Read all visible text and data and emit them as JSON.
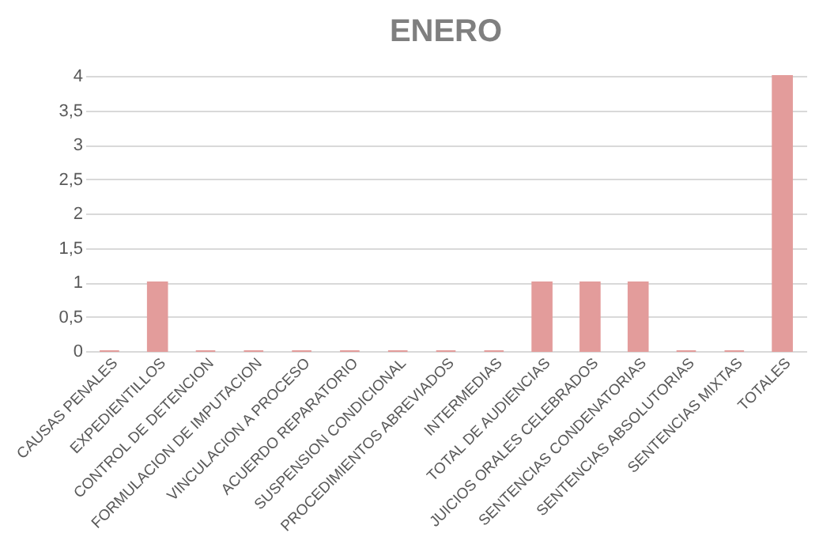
{
  "chart_data": {
    "type": "bar",
    "title": "ENERO",
    "categories": [
      "CAUSAS PENALES",
      "EXPEDIENTILLOS",
      "CONTROL DE DETENCION",
      "FORMULACION DE IMPUTACION",
      "VINCULACION A PROCESO",
      "ACUERDO REPARATORIO",
      "SUSPENSION CONDICIONAL",
      "PROCEDIMIENTOS ABREVIADOS",
      "INTERMEDIAS",
      "TOTAL DE AUDIENCIAS",
      "JUICIOS ORALES CELEBRADOS",
      "SENTENCIAS CONDENATORIAS",
      "SENTENCIAS ABSOLUTORIAS",
      "SENTENCIAS MIXTAS",
      "TOTALES"
    ],
    "values": [
      0,
      1,
      0,
      0,
      0,
      0,
      0,
      0,
      0,
      1,
      1,
      1,
      0,
      0,
      4
    ],
    "color": "#e39c9b",
    "ylim": [
      0,
      4
    ],
    "yticks": [
      0,
      {
        "value": 0.5,
        "label": "0,5"
      },
      1,
      {
        "value": 1.5,
        "label": "1,5"
      },
      2,
      {
        "value": 2.5,
        "label": "2,5"
      },
      3,
      {
        "value": 3.5,
        "label": "3,5"
      },
      4
    ],
    "grid": "y"
  }
}
